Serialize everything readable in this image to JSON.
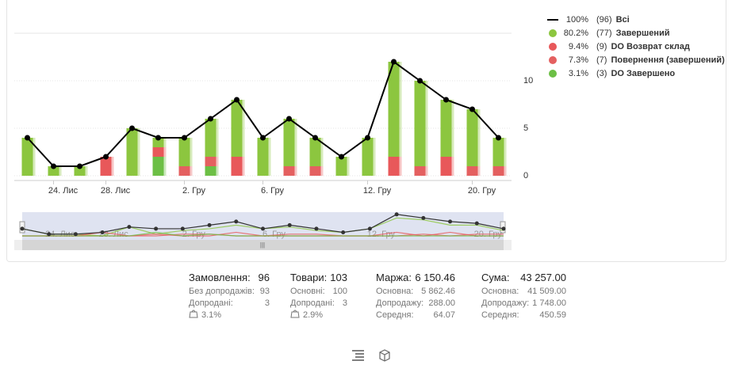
{
  "chart_data": {
    "type": "bar",
    "categories": [
      null,
      "24. Лис",
      null,
      "28. Лис",
      null,
      null,
      "2. Гру",
      null,
      null,
      "6. Гру",
      null,
      null,
      null,
      "12. Гру",
      null,
      null,
      null,
      "20. Гру",
      null
    ],
    "ylim": [
      0,
      15
    ],
    "yticks": [
      0,
      5,
      10
    ],
    "grid": true,
    "stacked": true,
    "line": {
      "name": "Всі",
      "color": "#000000",
      "share_label": "100%",
      "count_label": "(96)",
      "values": [
        4,
        1,
        1,
        2,
        5,
        4,
        4,
        6,
        8,
        4,
        6,
        4,
        2,
        4,
        12,
        10,
        8,
        7,
        4
      ]
    },
    "series": [
      {
        "name": "Завершений",
        "color": "#8cc63f",
        "share_label": "80.2%",
        "count_label": "(77)",
        "values": [
          4,
          1,
          1,
          0,
          5,
          1,
          3,
          4,
          6,
          4,
          5,
          3,
          2,
          4,
          10,
          9,
          6,
          6,
          3
        ]
      },
      {
        "name": "DO Возврат склад",
        "color": "#e8585a",
        "share_label": "9.4%",
        "count_label": "(9)",
        "values": [
          0,
          0,
          0,
          2,
          0,
          1,
          0,
          0,
          2,
          0,
          0,
          0,
          0,
          0,
          2,
          0,
          2,
          0,
          0
        ]
      },
      {
        "name": "Повернення (завершений)",
        "color": "#e46060",
        "share_label": "7.3%",
        "count_label": "(7)",
        "values": [
          0,
          0,
          0,
          0,
          0,
          0,
          1,
          1,
          0,
          0,
          1,
          1,
          0,
          0,
          0,
          1,
          0,
          1,
          1
        ]
      },
      {
        "name": "DO Завершено",
        "color": "#6cbf45",
        "share_label": "3.1%",
        "count_label": "(3)",
        "values": [
          0,
          0,
          0,
          0,
          0,
          2,
          0,
          1,
          0,
          0,
          0,
          0,
          0,
          0,
          0,
          0,
          0,
          0,
          0
        ]
      }
    ]
  },
  "summary": [
    {
      "title": "Замовлення:",
      "value": "96",
      "rows": [
        [
          "Без допродажів:",
          "93"
        ],
        [
          "Допродані:",
          "3"
        ]
      ],
      "extra": "3.1%"
    },
    {
      "title": "Товари:",
      "value": "103",
      "rows": [
        [
          "Основні:",
          "100"
        ],
        [
          "Допродані:",
          "3"
        ]
      ],
      "extra": "2.9%"
    },
    {
      "title": "Маржа:",
      "value": "6 150.46",
      "rows": [
        [
          "Основна:",
          "5 862.46"
        ],
        [
          "Допродажу:",
          "288.00"
        ],
        [
          "Середня:",
          "64.07"
        ]
      ]
    },
    {
      "title": "Сума:",
      "value": "43 257.00",
      "rows": [
        [
          "Основна:",
          "41 509.00"
        ],
        [
          "Допродажу:",
          "1 748.00"
        ],
        [
          "Середня:",
          "450.59"
        ]
      ]
    }
  ]
}
